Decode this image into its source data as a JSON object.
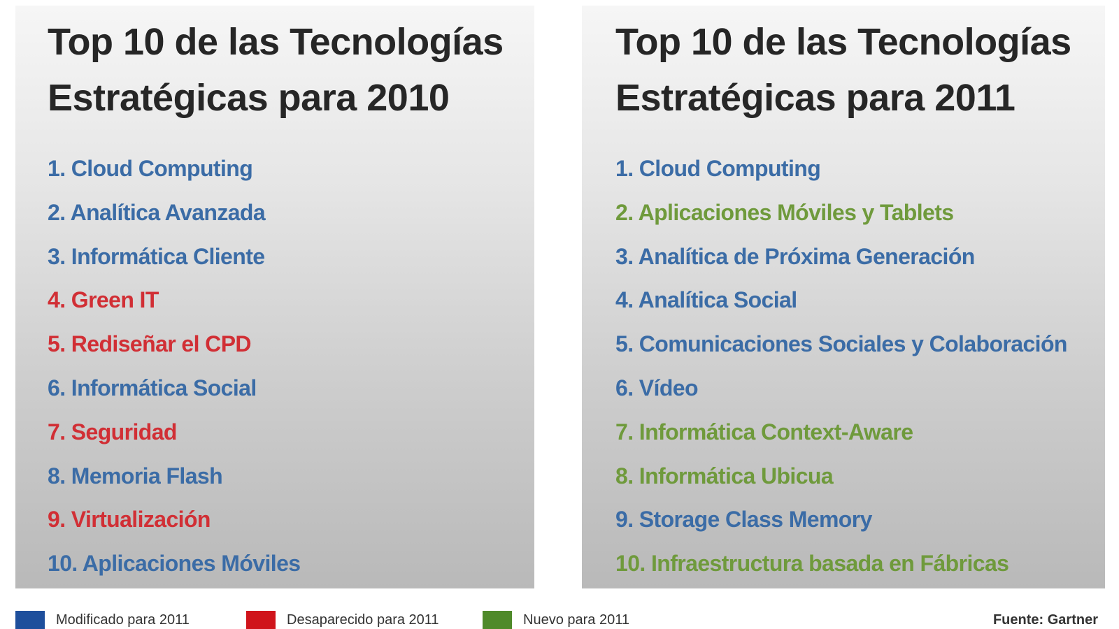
{
  "colors": {
    "blue": "#3b6ca6",
    "red": "#d12f35",
    "green": "#6f9a3c",
    "swatch_blue": "#1e4f9c",
    "swatch_red": "#d0141b",
    "swatch_green": "#4f8a2a"
  },
  "left_panel": {
    "title_line1": "Top 10 de las Tecnologías",
    "title_line2": "Estratégicas para 2010",
    "items": [
      {
        "text": "1. Cloud Computing",
        "color": "blue"
      },
      {
        "text": "2. Analítica Avanzada",
        "color": "blue"
      },
      {
        "text": "3. Informática Cliente",
        "color": "blue"
      },
      {
        "text": "4. Green IT",
        "color": "red"
      },
      {
        "text": "5. Rediseñar el CPD",
        "color": "red"
      },
      {
        "text": "6. Informática Social",
        "color": "blue"
      },
      {
        "text": "7. Seguridad",
        "color": "red"
      },
      {
        "text": "8. Memoria Flash",
        "color": "blue"
      },
      {
        "text": "9. Virtualización",
        "color": "red"
      },
      {
        "text": "10. Aplicaciones Móviles",
        "color": "blue"
      }
    ]
  },
  "right_panel": {
    "title_line1": "Top 10 de las Tecnologías",
    "title_line2": "Estratégicas para 2011",
    "items": [
      {
        "text": "1. Cloud Computing",
        "color": "blue"
      },
      {
        "text": "2. Aplicaciones Móviles y Tablets",
        "color": "green"
      },
      {
        "text": "3. Analítica de Próxima Generación",
        "color": "blue"
      },
      {
        "text": "4. Analítica Social",
        "color": "blue"
      },
      {
        "text": "5. Comunicaciones Sociales y Colaboración",
        "color": "blue"
      },
      {
        "text": "6. Vídeo",
        "color": "blue"
      },
      {
        "text": "7. Informática Context-Aware",
        "color": "green"
      },
      {
        "text": "8. Informática Ubicua",
        "color": "green"
      },
      {
        "text": "9. Storage Class Memory",
        "color": "blue"
      },
      {
        "text": "10. Infraestructura basada en Fábricas",
        "color": "green"
      }
    ]
  },
  "legend": {
    "items": [
      {
        "label": "Modificado para 2011",
        "color": "swatch_blue"
      },
      {
        "label": "Desaparecido para 2011",
        "color": "swatch_red"
      },
      {
        "label": "Nuevo para 2011",
        "color": "swatch_green"
      }
    ],
    "source": "Fuente: Gartner"
  }
}
